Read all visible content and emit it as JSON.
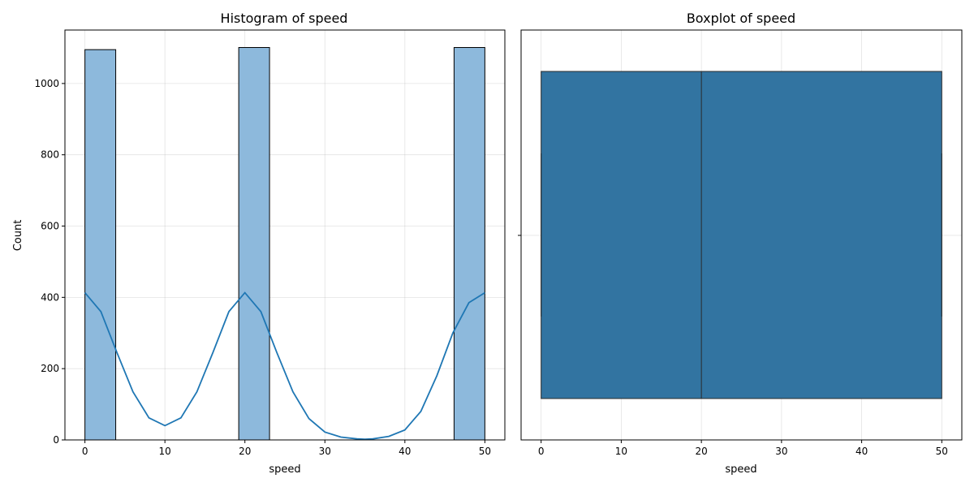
{
  "chart_data": [
    {
      "type": "histogram",
      "title": "Histogram of speed",
      "xlabel": "speed",
      "ylabel": "Count",
      "xlim": [
        -2.5,
        52.5
      ],
      "ylim": [
        0,
        1150
      ],
      "xticks": [
        0,
        10,
        20,
        30,
        40,
        50
      ],
      "yticks": [
        0,
        200,
        400,
        600,
        800,
        1000
      ],
      "grid": true,
      "bar_color": "#8db9dc",
      "kde_color": "#1f77b4",
      "bins": [
        {
          "x0": 0.0,
          "x1": 3.85,
          "count": 1095
        },
        {
          "x0": 19.23,
          "x1": 23.08,
          "count": 1101
        },
        {
          "x0": 46.15,
          "x1": 50.0,
          "count": 1101
        }
      ],
      "kde": {
        "x": [
          0,
          2,
          4,
          6,
          8,
          10,
          12,
          14,
          16,
          18,
          20,
          22,
          24,
          26,
          28,
          30,
          32,
          34,
          35,
          36,
          38,
          40,
          42,
          44,
          46,
          48,
          50
        ],
        "y": [
          413,
          360,
          245,
          135,
          62,
          40,
          62,
          135,
          245,
          360,
          413,
          360,
          245,
          135,
          60,
          22,
          8,
          3,
          2,
          3,
          10,
          28,
          80,
          180,
          300,
          385,
          413
        ]
      }
    },
    {
      "type": "boxplot",
      "title": "Boxplot of speed",
      "xlabel": "speed",
      "xlim": [
        -2.5,
        52.5
      ],
      "xticks": [
        0,
        10,
        20,
        30,
        40,
        50
      ],
      "grid": true,
      "box_color": "#3274a1",
      "stats": {
        "whisker_low": 0,
        "q1": 0,
        "median": 20,
        "q3": 50,
        "whisker_high": 50
      }
    }
  ]
}
